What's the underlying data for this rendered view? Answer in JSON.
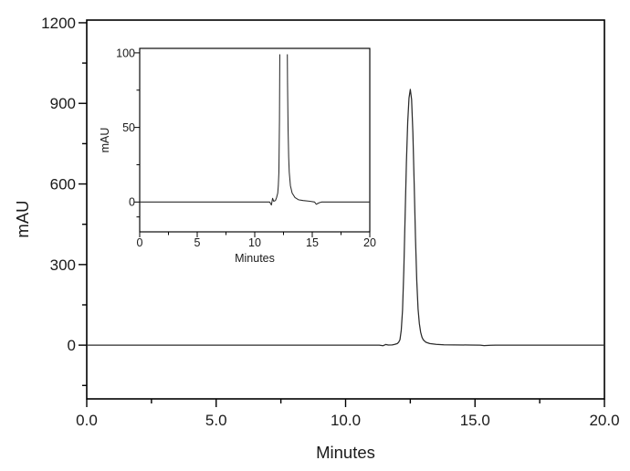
{
  "figure": {
    "kind": "HPLC chromatogram with zoomed inset",
    "background": "#ffffff",
    "colors": {
      "axis": "#000000",
      "text": "#1a1a1a",
      "trace": "#2b2b2b"
    }
  },
  "chart_data": [
    {
      "id": "main",
      "type": "line",
      "title": "",
      "xlabel": "Minutes",
      "ylabel": "mAU",
      "xlim": [
        0,
        20
      ],
      "ylim": [
        -200,
        1210
      ],
      "xticks": [
        0,
        5,
        10,
        15,
        20
      ],
      "xtick_labels": [
        "0.0",
        "5.0",
        "10.0",
        "15.0",
        "20.0"
      ],
      "xminor": [
        2.5,
        7.5,
        12.5,
        17.5
      ],
      "yticks": [
        0,
        300,
        600,
        900,
        1200
      ],
      "ytick_labels": [
        "0",
        "300",
        "600",
        "900",
        "1200"
      ],
      "yminor": [
        -150,
        150,
        450,
        750,
        1050
      ],
      "grid": false,
      "legend": "none",
      "frame": "full-box",
      "peaks": [
        {
          "retention_time_min": 12.5,
          "apex_mAU": 952
        }
      ],
      "series": [
        {
          "name": "signal",
          "points": [
            [
              0,
              0
            ],
            [
              2,
              0
            ],
            [
              4,
              0
            ],
            [
              6,
              0
            ],
            [
              8,
              0
            ],
            [
              10,
              0
            ],
            [
              11.0,
              0
            ],
            [
              11.3,
              0
            ],
            [
              11.45,
              -2
            ],
            [
              11.55,
              2.5
            ],
            [
              11.65,
              0.5
            ],
            [
              11.8,
              1
            ],
            [
              11.9,
              3
            ],
            [
              12.0,
              6
            ],
            [
              12.05,
              11
            ],
            [
              12.1,
              20
            ],
            [
              12.15,
              55
            ],
            [
              12.2,
              130
            ],
            [
              12.25,
              280
            ],
            [
              12.3,
              480
            ],
            [
              12.35,
              680
            ],
            [
              12.4,
              830
            ],
            [
              12.45,
              920
            ],
            [
              12.5,
              952
            ],
            [
              12.55,
              915
            ],
            [
              12.6,
              790
            ],
            [
              12.65,
              600
            ],
            [
              12.7,
              400
            ],
            [
              12.75,
              240
            ],
            [
              12.8,
              135
            ],
            [
              12.85,
              80
            ],
            [
              12.9,
              48
            ],
            [
              12.95,
              30
            ],
            [
              13.0,
              20
            ],
            [
              13.1,
              11
            ],
            [
              13.25,
              6
            ],
            [
              13.5,
              3
            ],
            [
              13.8,
              1.5
            ],
            [
              14.2,
              1
            ],
            [
              14.8,
              0.5
            ],
            [
              15.2,
              0
            ],
            [
              15.35,
              -1.5
            ],
            [
              15.6,
              -0.5
            ],
            [
              15.8,
              0
            ],
            [
              16.5,
              0
            ],
            [
              18,
              0
            ],
            [
              20,
              0
            ]
          ]
        }
      ]
    },
    {
      "id": "inset",
      "type": "line",
      "title": "",
      "xlabel": "Minutes",
      "ylabel": "mAU",
      "xlim": [
        0,
        20
      ],
      "ylim": [
        -20,
        103
      ],
      "xticks": [
        0,
        5,
        10,
        15,
        20
      ],
      "xtick_labels": [
        "0",
        "5",
        "10",
        "15",
        "20"
      ],
      "xminor": [
        2.5,
        7.5,
        12.5,
        17.5
      ],
      "yticks": [
        0,
        50,
        100
      ],
      "ytick_labels": [
        "0",
        "50",
        "100"
      ],
      "yminor": [
        -10,
        25,
        75
      ],
      "grid": false,
      "legend": "none",
      "frame": "full-box",
      "trace_clip_mAU": 99,
      "note": "same signal as main plot, y-axis zoomed so peak is clipped near 100 mAU",
      "series_from": 0
    }
  ]
}
